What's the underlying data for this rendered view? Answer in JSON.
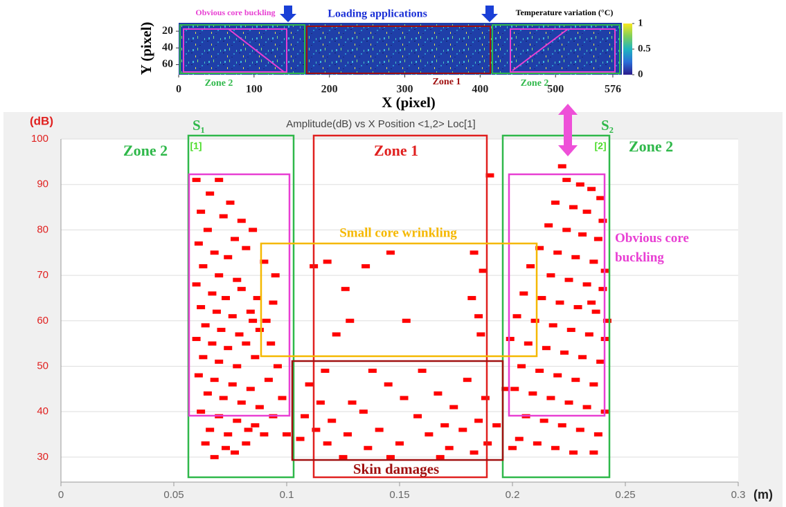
{
  "chart_data": [
    {
      "type": "heatmap",
      "annotations": [
        "Obvious core buckling",
        "Loading applications",
        "Temperature variation (°C)",
        "Zone 2",
        "Zone 1",
        "Zone 2"
      ],
      "x_label": "X (pixel)",
      "y_label": "Y (pixel)",
      "xlim": [
        0,
        588
      ],
      "xticks": [
        0,
        100,
        200,
        300,
        400,
        500,
        576
      ],
      "ylim": [
        10,
        72
      ],
      "yticks": [
        20,
        40,
        60
      ],
      "clim": [
        0,
        1
      ],
      "cticks": [
        0,
        0.5,
        1
      ]
    },
    {
      "type": "scatter",
      "title": "Amplitude(dB) vs X Position <1,2> Loc[1]",
      "y_label": "(dB)",
      "x_label": "(m)",
      "annotations": [
        "S₁",
        "S₂",
        "[1]",
        "[2]",
        "Zone 2",
        "Zone 1",
        "Zone 2",
        "Small core wrinkling",
        "Obvious core buckling",
        "Skin damages"
      ],
      "xlim": [
        0,
        0.3
      ],
      "xticks": [
        0,
        0.05,
        0.1,
        0.15,
        0.2,
        0.25,
        0.3
      ],
      "ylim": [
        24.5,
        100
      ],
      "yticks": [
        30,
        40,
        50,
        60,
        70,
        80,
        90,
        100
      ],
      "grid": true,
      "color": "#ff0000",
      "x": [
        0.06,
        0.07,
        0.066,
        0.075,
        0.062,
        0.072,
        0.08,
        0.065,
        0.077,
        0.085,
        0.061,
        0.068,
        0.074,
        0.082,
        0.09,
        0.063,
        0.07,
        0.078,
        0.095,
        0.06,
        0.067,
        0.073,
        0.08,
        0.087,
        0.062,
        0.069,
        0.076,
        0.084,
        0.091,
        0.064,
        0.071,
        0.079,
        0.088,
        0.06,
        0.067,
        0.074,
        0.082,
        0.093,
        0.063,
        0.07,
        0.078,
        0.086,
        0.096,
        0.061,
        0.068,
        0.076,
        0.084,
        0.092,
        0.065,
        0.072,
        0.08,
        0.088,
        0.098,
        0.062,
        0.07,
        0.078,
        0.086,
        0.094,
        0.066,
        0.074,
        0.083,
        0.09,
        0.1,
        0.064,
        0.073,
        0.082,
        0.068,
        0.077,
        0.085,
        0.094,
        0.112,
        0.118,
        0.135,
        0.146,
        0.183,
        0.187,
        0.126,
        0.182,
        0.185,
        0.128,
        0.153,
        0.122,
        0.186,
        0.19,
        0.117,
        0.138,
        0.16,
        0.11,
        0.145,
        0.167,
        0.18,
        0.115,
        0.129,
        0.152,
        0.174,
        0.188,
        0.108,
        0.12,
        0.134,
        0.158,
        0.17,
        0.185,
        0.113,
        0.127,
        0.141,
        0.163,
        0.178,
        0.193,
        0.118,
        0.136,
        0.15,
        0.172,
        0.189,
        0.125,
        0.146,
        0.168,
        0.183,
        0.106,
        0.197,
        0.222,
        0.224,
        0.23,
        0.235,
        0.239,
        0.219,
        0.227,
        0.233,
        0.24,
        0.216,
        0.224,
        0.231,
        0.238,
        0.212,
        0.22,
        0.228,
        0.236,
        0.241,
        0.208,
        0.217,
        0.225,
        0.233,
        0.24,
        0.205,
        0.213,
        0.221,
        0.229,
        0.237,
        0.202,
        0.21,
        0.218,
        0.226,
        0.234,
        0.241,
        0.199,
        0.207,
        0.215,
        0.223,
        0.231,
        0.239,
        0.204,
        0.212,
        0.22,
        0.228,
        0.236,
        0.201,
        0.209,
        0.217,
        0.225,
        0.233,
        0.241,
        0.206,
        0.214,
        0.222,
        0.23,
        0.238,
        0.203,
        0.211,
        0.219,
        0.227,
        0.236,
        0.2,
        0.242,
        0.235
      ],
      "values": [
        91,
        91,
        88,
        86,
        84,
        83,
        82,
        80,
        78,
        80,
        77,
        75,
        74,
        76,
        73,
        72,
        70,
        69,
        70,
        68,
        66,
        65,
        67,
        65,
        63,
        62,
        61,
        62,
        60,
        59,
        58,
        57,
        58,
        56,
        55,
        54,
        55,
        55,
        52,
        51,
        50,
        52,
        50,
        48,
        47,
        46,
        45,
        47,
        44,
        43,
        42,
        41,
        43,
        40,
        39,
        38,
        37,
        39,
        36,
        35,
        36,
        35,
        35,
        33,
        32,
        33,
        30,
        31,
        60,
        64,
        72,
        73,
        72,
        75,
        75,
        71,
        67,
        65,
        61,
        60,
        60,
        57,
        57,
        92,
        49,
        49,
        49,
        46,
        46,
        44,
        47,
        42,
        42,
        43,
        41,
        43,
        39,
        38,
        40,
        39,
        37,
        38,
        36,
        35,
        36,
        35,
        36,
        37,
        33,
        32,
        33,
        32,
        33,
        30,
        30,
        30,
        31,
        34,
        45,
        94,
        91,
        90,
        89,
        87,
        86,
        85,
        84,
        82,
        81,
        80,
        79,
        78,
        76,
        75,
        74,
        73,
        71,
        72,
        70,
        69,
        68,
        67,
        66,
        65,
        64,
        63,
        62,
        61,
        60,
        59,
        58,
        57,
        56,
        56,
        55,
        54,
        53,
        52,
        51,
        50,
        49,
        48,
        47,
        46,
        45,
        44,
        43,
        42,
        41,
        40,
        39,
        38,
        37,
        36,
        35,
        34,
        33,
        32,
        31,
        31,
        32,
        60,
        64
      ]
    }
  ]
}
